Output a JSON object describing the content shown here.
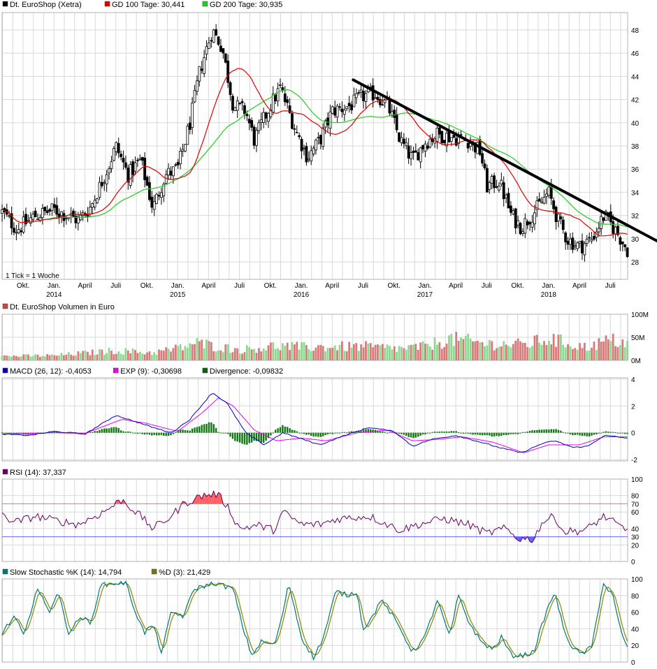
{
  "chart_data": [
    {
      "type": "candlestick",
      "panel": "price",
      "legend": [
        {
          "label": "Dt. EuroShop (Xetra)",
          "color": "#000000"
        },
        {
          "label": "GD 100 Tage: 30,441",
          "color": "#e00000"
        },
        {
          "label": "GD 200 Tage: 30,935",
          "color": "#22cc22"
        }
      ],
      "note": "1 Tick = 1 Woche",
      "y_ticks": [
        "28",
        "30",
        "32",
        "34",
        "36",
        "38",
        "40",
        "42",
        "44",
        "46",
        "48"
      ],
      "ylim": [
        26.5,
        49.5
      ],
      "x_ticks": [
        {
          "label": "Okt.",
          "t": 2013.75
        },
        {
          "label": "Jan.",
          "year": "2014",
          "t": 2014.0
        },
        {
          "label": "April",
          "t": 2014.25
        },
        {
          "label": "Juli",
          "t": 2014.5
        },
        {
          "label": "Okt.",
          "t": 2014.75
        },
        {
          "label": "Jan.",
          "year": "2015",
          "t": 2015.0
        },
        {
          "label": "April",
          "t": 2015.25
        },
        {
          "label": "Juli",
          "t": 2015.5
        },
        {
          "label": "Okt.",
          "t": 2015.75
        },
        {
          "label": "Jan.",
          "year": "2016",
          "t": 2016.0
        },
        {
          "label": "April",
          "t": 2016.25
        },
        {
          "label": "Juli",
          "t": 2016.5
        },
        {
          "label": "Okt.",
          "t": 2016.75
        },
        {
          "label": "Jan.",
          "year": "2017",
          "t": 2017.0
        },
        {
          "label": "April",
          "t": 2017.25
        },
        {
          "label": "Juli",
          "t": 2017.5
        },
        {
          "label": "Okt.",
          "t": 2017.75
        },
        {
          "label": "Jan.",
          "year": "2018",
          "t": 2018.0
        },
        {
          "label": "April",
          "t": 2018.25
        },
        {
          "label": "Juli",
          "t": 2018.5
        }
      ],
      "xlim": [
        2013.58,
        2018.64
      ],
      "close_key": [
        [
          2013.58,
          32.3
        ],
        [
          2013.7,
          30.8
        ],
        [
          2013.85,
          32.0
        ],
        [
          2014.0,
          32.5
        ],
        [
          2014.2,
          31.6
        ],
        [
          2014.3,
          32.8
        ],
        [
          2014.45,
          36.5
        ],
        [
          2014.5,
          38.0
        ],
        [
          2014.6,
          35.5
        ],
        [
          2014.7,
          36.8
        ],
        [
          2014.8,
          32.6
        ],
        [
          2014.9,
          35.5
        ],
        [
          2015.0,
          36.0
        ],
        [
          2015.1,
          40.0
        ],
        [
          2015.18,
          44.5
        ],
        [
          2015.28,
          48.0
        ],
        [
          2015.36,
          46.5
        ],
        [
          2015.45,
          41.5
        ],
        [
          2015.55,
          41.0
        ],
        [
          2015.62,
          38.5
        ],
        [
          2015.75,
          41.5
        ],
        [
          2015.83,
          43.0
        ],
        [
          2015.95,
          39.5
        ],
        [
          2016.05,
          37.0
        ],
        [
          2016.15,
          38.5
        ],
        [
          2016.25,
          41.0
        ],
        [
          2016.4,
          41.5
        ],
        [
          2016.5,
          42.3
        ],
        [
          2016.6,
          42.5
        ],
        [
          2016.7,
          41.5
        ],
        [
          2016.8,
          38.5
        ],
        [
          2016.9,
          36.8
        ],
        [
          2017.0,
          38.3
        ],
        [
          2017.1,
          39.0
        ],
        [
          2017.25,
          38.7
        ],
        [
          2017.35,
          38.5
        ],
        [
          2017.45,
          37.5
        ],
        [
          2017.5,
          34.5
        ],
        [
          2017.6,
          35.0
        ],
        [
          2017.7,
          32.0
        ],
        [
          2017.78,
          31.0
        ],
        [
          2017.9,
          32.5
        ],
        [
          2018.0,
          34.0
        ],
        [
          2018.08,
          31.5
        ],
        [
          2018.15,
          30.0
        ],
        [
          2018.25,
          29.3
        ],
        [
          2018.35,
          30.0
        ],
        [
          2018.45,
          32.0
        ],
        [
          2018.55,
          30.6
        ],
        [
          2018.64,
          29.0
        ]
      ],
      "trendline": [
        [
          2016.42,
          43.7
        ],
        [
          2018.7,
          30.3
        ]
      ]
    },
    {
      "type": "bar",
      "panel": "volume",
      "legend": [
        {
          "label": "Dt. EuroShop Volumen in Euro",
          "color": "#cc4444"
        }
      ],
      "y_ticks": [
        "0M",
        "50M",
        "100M"
      ],
      "ylim": [
        0,
        100
      ],
      "peak_values": [
        [
          2013.6,
          12
        ],
        [
          2014.0,
          14
        ],
        [
          2014.5,
          28
        ],
        [
          2014.8,
          22
        ],
        [
          2015.0,
          35
        ],
        [
          2015.15,
          50
        ],
        [
          2015.5,
          30
        ],
        [
          2015.8,
          42
        ],
        [
          2016.0,
          38
        ],
        [
          2016.5,
          40
        ],
        [
          2016.8,
          34
        ],
        [
          2017.0,
          40
        ],
        [
          2017.2,
          62
        ],
        [
          2017.5,
          48
        ],
        [
          2017.8,
          45
        ],
        [
          2018.0,
          62
        ],
        [
          2018.3,
          38
        ],
        [
          2018.5,
          58
        ],
        [
          2018.64,
          50
        ]
      ]
    },
    {
      "type": "line",
      "panel": "macd",
      "legend": [
        {
          "label": "MACD (26, 12): -0,4053",
          "color": "#0000cc"
        },
        {
          "label": "EXP (9): -0,30698",
          "color": "#ee00ee"
        },
        {
          "label": "Divergence: -0,09832",
          "color": "#006600"
        }
      ],
      "y_ticks": [
        "-2",
        "0",
        "2",
        "4"
      ],
      "ylim": [
        -2,
        4
      ],
      "macd_key": [
        [
          2013.58,
          -0.1
        ],
        [
          2013.8,
          -0.2
        ],
        [
          2014.0,
          0.1
        ],
        [
          2014.25,
          -0.1
        ],
        [
          2014.5,
          1.3
        ],
        [
          2014.6,
          1.0
        ],
        [
          2014.8,
          0.4
        ],
        [
          2014.95,
          0.0
        ],
        [
          2015.1,
          1.0
        ],
        [
          2015.28,
          3.0
        ],
        [
          2015.4,
          2.2
        ],
        [
          2015.55,
          0.0
        ],
        [
          2015.7,
          -0.9
        ],
        [
          2015.85,
          0.0
        ],
        [
          2016.05,
          -0.6
        ],
        [
          2016.15,
          -0.9
        ],
        [
          2016.35,
          -0.2
        ],
        [
          2016.55,
          0.4
        ],
        [
          2016.75,
          0.1
        ],
        [
          2016.9,
          -1.0
        ],
        [
          2017.05,
          -0.5
        ],
        [
          2017.25,
          -0.2
        ],
        [
          2017.45,
          -0.7
        ],
        [
          2017.6,
          -1.1
        ],
        [
          2017.78,
          -1.5
        ],
        [
          2017.95,
          -0.8
        ],
        [
          2018.05,
          -0.6
        ],
        [
          2018.2,
          -1.1
        ],
        [
          2018.32,
          -1.0
        ],
        [
          2018.45,
          -0.2
        ],
        [
          2018.55,
          -0.3
        ],
        [
          2018.64,
          -0.4
        ]
      ],
      "signal_key": [
        [
          2013.58,
          -0.1
        ],
        [
          2014.0,
          0.0
        ],
        [
          2014.25,
          -0.05
        ],
        [
          2014.55,
          1.0
        ],
        [
          2014.75,
          0.7
        ],
        [
          2015.0,
          0.1
        ],
        [
          2015.2,
          1.5
        ],
        [
          2015.33,
          2.6
        ],
        [
          2015.45,
          2.0
        ],
        [
          2015.62,
          0.2
        ],
        [
          2015.8,
          -0.6
        ],
        [
          2016.0,
          -0.4
        ],
        [
          2016.2,
          -0.6
        ],
        [
          2016.45,
          0.0
        ],
        [
          2016.7,
          0.2
        ],
        [
          2016.9,
          -0.6
        ],
        [
          2017.1,
          -0.5
        ],
        [
          2017.3,
          -0.3
        ],
        [
          2017.55,
          -0.7
        ],
        [
          2017.8,
          -1.5
        ],
        [
          2018.0,
          -0.9
        ],
        [
          2018.25,
          -0.9
        ],
        [
          2018.45,
          -0.3
        ],
        [
          2018.64,
          -0.31
        ]
      ]
    },
    {
      "type": "line",
      "panel": "rsi",
      "legend": [
        {
          "label": "RSI (14): 37,337",
          "color": "#660066"
        }
      ],
      "y_ticks": [
        "0",
        "20",
        "40",
        "60",
        "80",
        "100"
      ],
      "ylim": [
        0,
        100
      ],
      "thresholds": [
        {
          "value": 70,
          "label": "70",
          "color": "#ff6666"
        },
        {
          "value": 30,
          "label": "30",
          "color": "#6666ff"
        }
      ],
      "rsi_key": [
        [
          2013.58,
          55
        ],
        [
          2013.7,
          48
        ],
        [
          2013.85,
          55
        ],
        [
          2014.0,
          50
        ],
        [
          2014.2,
          45
        ],
        [
          2014.4,
          60
        ],
        [
          2014.55,
          75
        ],
        [
          2014.7,
          55
        ],
        [
          2014.8,
          40
        ],
        [
          2014.95,
          55
        ],
        [
          2015.05,
          70
        ],
        [
          2015.2,
          80
        ],
        [
          2015.32,
          82
        ],
        [
          2015.4,
          68
        ],
        [
          2015.5,
          40
        ],
        [
          2015.65,
          44
        ],
        [
          2015.78,
          38
        ],
        [
          2015.85,
          60
        ],
        [
          2016.0,
          45
        ],
        [
          2016.15,
          45
        ],
        [
          2016.3,
          52
        ],
        [
          2016.55,
          55
        ],
        [
          2016.8,
          38
        ],
        [
          2016.95,
          45
        ],
        [
          2017.15,
          52
        ],
        [
          2017.35,
          45
        ],
        [
          2017.5,
          34
        ],
        [
          2017.65,
          40
        ],
        [
          2017.75,
          28
        ],
        [
          2017.88,
          27
        ],
        [
          2017.95,
          48
        ],
        [
          2018.05,
          55
        ],
        [
          2018.12,
          36
        ],
        [
          2018.3,
          38
        ],
        [
          2018.45,
          55
        ],
        [
          2018.55,
          45
        ],
        [
          2018.64,
          37.3
        ]
      ]
    },
    {
      "type": "line",
      "panel": "stochastic",
      "legend": [
        {
          "label": "Slow Stochastic %K (14): 14,794",
          "color": "#007777"
        },
        {
          "label": "%D (3): 21,429",
          "color": "#777700"
        }
      ],
      "y_ticks": [
        "0",
        "20",
        "40",
        "60",
        "80",
        "100"
      ],
      "ylim": [
        0,
        100
      ],
      "k_key": [
        [
          2013.58,
          35
        ],
        [
          2013.68,
          55
        ],
        [
          2013.76,
          30
        ],
        [
          2013.86,
          90
        ],
        [
          2013.96,
          60
        ],
        [
          2014.03,
          85
        ],
        [
          2014.12,
          35
        ],
        [
          2014.22,
          55
        ],
        [
          2014.3,
          45
        ],
        [
          2014.37,
          92
        ],
        [
          2014.5,
          95
        ],
        [
          2014.58,
          95
        ],
        [
          2014.66,
          60
        ],
        [
          2014.73,
          35
        ],
        [
          2014.8,
          45
        ],
        [
          2014.87,
          12
        ],
        [
          2014.95,
          60
        ],
        [
          2015.05,
          55
        ],
        [
          2015.13,
          88
        ],
        [
          2015.3,
          95
        ],
        [
          2015.45,
          88
        ],
        [
          2015.53,
          40
        ],
        [
          2015.6,
          8
        ],
        [
          2015.68,
          25
        ],
        [
          2015.78,
          20
        ],
        [
          2015.83,
          45
        ],
        [
          2015.9,
          95
        ],
        [
          2016.0,
          30
        ],
        [
          2016.1,
          5
        ],
        [
          2016.18,
          30
        ],
        [
          2016.28,
          85
        ],
        [
          2016.38,
          80
        ],
        [
          2016.45,
          85
        ],
        [
          2016.5,
          40
        ],
        [
          2016.58,
          55
        ],
        [
          2016.64,
          75
        ],
        [
          2016.72,
          60
        ],
        [
          2016.8,
          40
        ],
        [
          2016.9,
          12
        ],
        [
          2017.0,
          30
        ],
        [
          2017.1,
          75
        ],
        [
          2017.2,
          30
        ],
        [
          2017.27,
          80
        ],
        [
          2017.35,
          50
        ],
        [
          2017.45,
          25
        ],
        [
          2017.55,
          15
        ],
        [
          2017.62,
          30
        ],
        [
          2017.7,
          8
        ],
        [
          2017.8,
          8
        ],
        [
          2017.88,
          12
        ],
        [
          2017.97,
          55
        ],
        [
          2018.05,
          85
        ],
        [
          2018.12,
          40
        ],
        [
          2018.2,
          15
        ],
        [
          2018.27,
          10
        ],
        [
          2018.35,
          18
        ],
        [
          2018.44,
          95
        ],
        [
          2018.52,
          80
        ],
        [
          2018.57,
          45
        ],
        [
          2018.64,
          15
        ]
      ]
    }
  ]
}
